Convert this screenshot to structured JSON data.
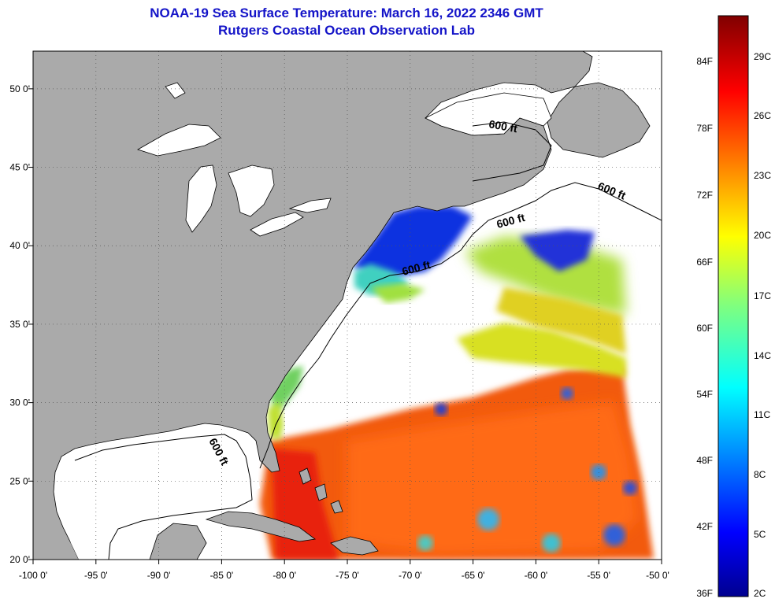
{
  "title": {
    "line1": "NOAA-19 Sea Surface Temperature:  March 16, 2022 2346 GMT",
    "line2": "Rutgers Coastal Ocean Observation Lab"
  },
  "map": {
    "lon_ticks": [
      "-100 0'",
      "-95 0'",
      "-90 0'",
      "-85 0'",
      "-80 0'",
      "-75 0'",
      "-70 0'",
      "-65 0'",
      "-60 0'",
      "-55 0'",
      "-50 0'"
    ],
    "lat_ticks": [
      "50 0'",
      "45 0'",
      "40 0'",
      "35 0'",
      "30 0'",
      "25 0'",
      "20 0'"
    ],
    "isobath_labels": [
      "600 ft",
      "600 ft",
      "600 ft",
      "600 ft",
      "600 ft"
    ],
    "colors": {
      "land": "#aaaaaa",
      "no_data": "#ffffff",
      "grid": "#555555"
    }
  },
  "colorbar": {
    "fahrenheit_labels": [
      "84F",
      "78F",
      "72F",
      "66F",
      "60F",
      "54F",
      "48F",
      "42F",
      "36F"
    ],
    "celsius_labels": [
      "29C",
      "26C",
      "23C",
      "20C",
      "17C",
      "14C",
      "11C",
      "8C",
      "5C",
      "2C"
    ]
  }
}
